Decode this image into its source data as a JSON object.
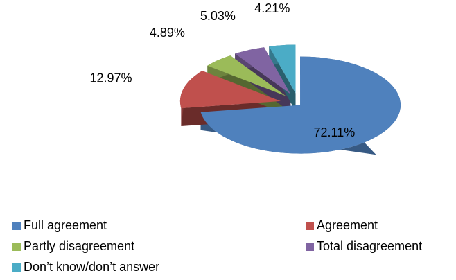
{
  "chart_data": {
    "type": "pie3d",
    "categories": [
      "Full agreement",
      "Agreement",
      "Partly disagreement",
      "Total disagreement",
      "Don’t know/don’t answer"
    ],
    "values": [
      72.11,
      12.97,
      4.89,
      5.03,
      4.21
    ],
    "value_labels": [
      "72.11%",
      "12.97%",
      "4.89%",
      "5.03%",
      "4.21%"
    ],
    "colors": [
      "#4f81bd",
      "#c0504d",
      "#9bbb59",
      "#8064a2",
      "#4bacc6"
    ],
    "legend": "bottom"
  }
}
